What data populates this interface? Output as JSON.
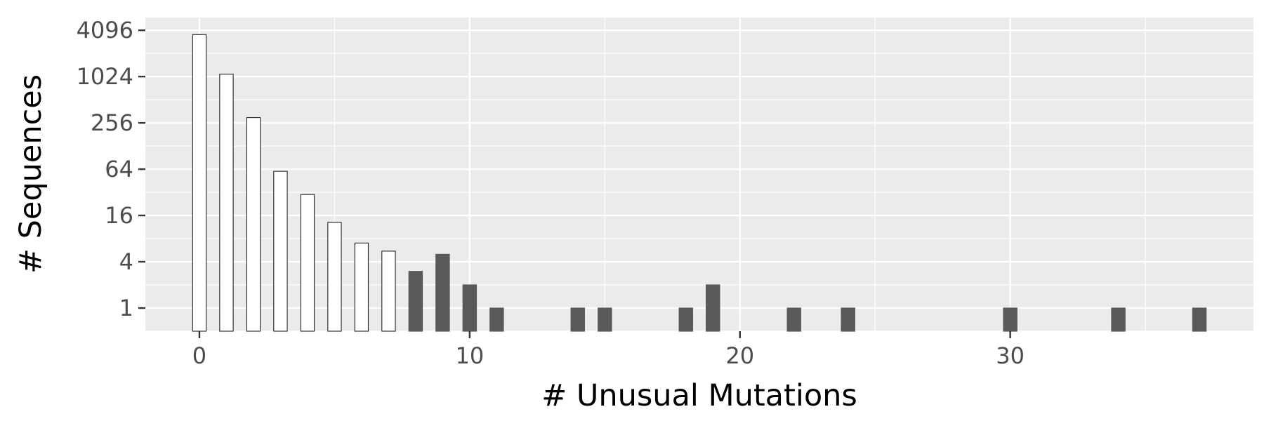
{
  "chart_data": {
    "type": "bar",
    "title": "",
    "xlabel": "# Unusual Mutations",
    "ylabel": "# Sequences",
    "y_scale": "log2",
    "grid": true,
    "legend": "none",
    "xlim": [
      -2,
      39
    ],
    "ylim": [
      0.5,
      6000
    ],
    "x_ticks": [
      0,
      10,
      20,
      30
    ],
    "y_ticks": [
      1,
      4,
      16,
      64,
      256,
      1024,
      4096
    ],
    "x_tick_labels": [
      "0",
      "10",
      "20",
      "30"
    ],
    "y_tick_labels": [
      "1",
      "4",
      "16",
      "64",
      "256",
      "1024",
      "4096"
    ],
    "bar_baseline": 0.5,
    "series": [
      {
        "style": "usual-range",
        "fill": "#ffffff",
        "stroke": "#333333",
        "x": [
          0,
          1,
          2,
          3,
          4,
          5,
          6,
          7
        ],
        "values": [
          3600,
          1100,
          300,
          60,
          30,
          13,
          7,
          5.5
        ]
      },
      {
        "style": "unusual-range",
        "fill": "#595959",
        "stroke": "#595959",
        "x": [
          8,
          9,
          10,
          11,
          14,
          15,
          18,
          19,
          22,
          24,
          30,
          34,
          37
        ],
        "values": [
          3,
          5,
          2,
          1,
          1,
          1,
          1,
          2,
          1,
          1,
          1,
          1,
          1
        ]
      }
    ]
  },
  "colors": {
    "panel_background": "#ebebeb",
    "grid_line": "#ffffff",
    "axis_tick": "#333333"
  }
}
